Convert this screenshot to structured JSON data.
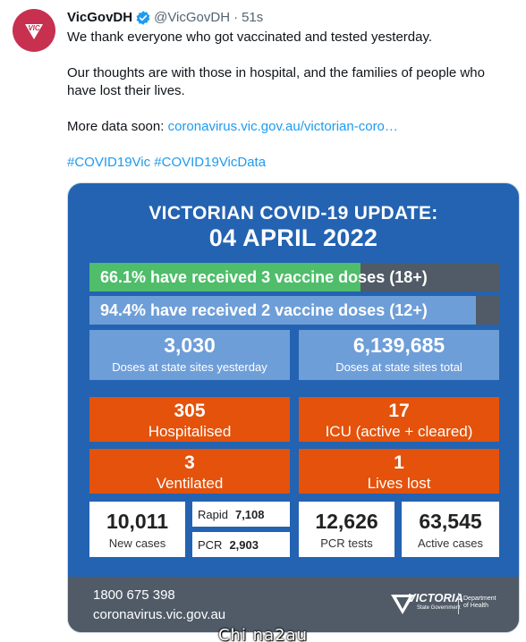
{
  "tweet": {
    "author_name": "VicGovDH",
    "handle": "@VicGovDH",
    "separator": "·",
    "time": "51s",
    "avatar_text": "VIC",
    "lines": {
      "l1": "We thank everyone who got vaccinated and tested yesterday.",
      "l2": "Our thoughts are with those in hospital, and the families of people who have lost their lives.",
      "l3_prefix": "More data soon: ",
      "l3_link": "coronavirus.vic.gov.au/victorian-coro…",
      "hashtag1": "#COVID19Vic",
      "hashtag2": "#COVID19VicData"
    }
  },
  "card": {
    "title_line1": "VICTORIAN COVID-19 UPDATE:",
    "title_line2": "04 APRIL 2022",
    "vaccine": {
      "three_doses": {
        "label": "66.1% have received 3 vaccine doses (18+)",
        "fraction": 0.661
      },
      "two_doses": {
        "label": "94.4% have received 2 vaccine doses (12+)",
        "fraction": 0.944
      }
    },
    "doses_yesterday": {
      "value": "3,030",
      "label": "Doses at state sites yesterday"
    },
    "doses_total": {
      "value": "6,139,685",
      "label": "Doses at state sites total"
    },
    "hospitalised": {
      "value": "305",
      "label": "Hospitalised"
    },
    "icu": {
      "value": "17",
      "label": "ICU (active + cleared)"
    },
    "ventilated": {
      "value": "3",
      "label": "Ventilated"
    },
    "lives_lost": {
      "value": "1",
      "label": "Lives lost"
    },
    "new_cases": {
      "value": "10,011",
      "label": "New cases"
    },
    "rapid": {
      "label": "Rapid",
      "value": "7,108"
    },
    "pcr": {
      "label": "PCR",
      "value": "2,903"
    },
    "pcr_tests": {
      "value": "12,626",
      "label": "PCR tests"
    },
    "active_cases": {
      "value": "63,545",
      "label": "Active cases"
    },
    "footer": {
      "phone": "1800 675 398",
      "site": "coronavirus.vic.gov.au",
      "logo_word": "VICTORIA",
      "logo_sub": "State Government",
      "dept": "Department of Health"
    }
  },
  "overlay_text": "Chi na2au",
  "colors": {
    "link": "#1d9bf0",
    "card_bg": "#2363b2",
    "green": "#4fbd6a",
    "light_blue": "#6e9ed8",
    "orange": "#e4520b",
    "grey": "#505b67",
    "avatar": "#c8304f"
  }
}
